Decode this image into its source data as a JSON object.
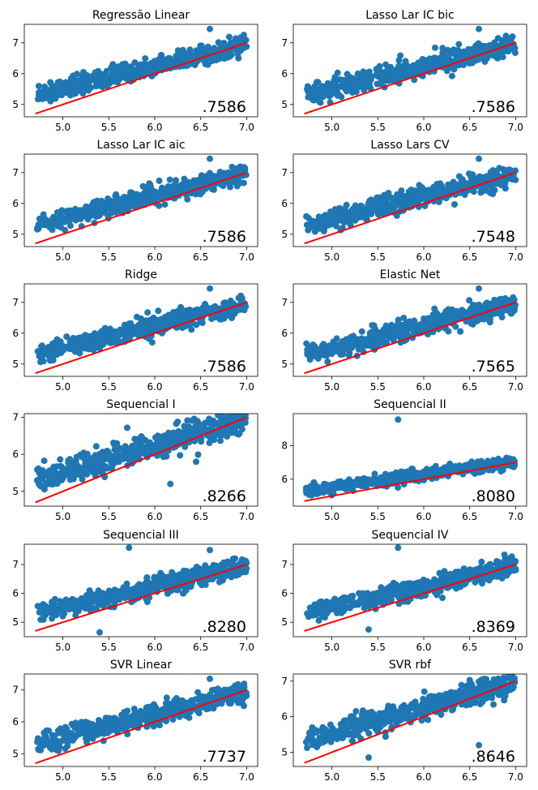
{
  "chart_data": [
    {
      "type": "scatter",
      "title": "Regressão Linear",
      "score": ".7586",
      "ylim": [
        4.6,
        7.6
      ],
      "xlim": [
        4.58,
        7.12
      ],
      "xticks": [
        "5.0",
        "5.5",
        "6.0",
        "6.5",
        "7.0"
      ],
      "yticks": [
        "5",
        "6",
        "7"
      ],
      "outliers": [
        [
          6.6,
          7.45
        ]
      ],
      "line": [
        [
          4.7,
          4.7
        ],
        [
          7.0,
          7.0
        ]
      ],
      "colors": {
        "points": "#1f77b4",
        "fit": "#ff0000"
      }
    },
    {
      "type": "scatter",
      "title": "Lasso Lar IC bic",
      "score": ".7586",
      "ylim": [
        4.6,
        7.6
      ],
      "xlim": [
        4.58,
        7.12
      ],
      "xticks": [
        "5.0",
        "5.5",
        "6.0",
        "6.5",
        "7.0"
      ],
      "yticks": [
        "5",
        "6",
        "7"
      ],
      "outliers": [
        [
          6.6,
          7.45
        ]
      ],
      "line": [
        [
          4.7,
          4.7
        ],
        [
          7.0,
          7.0
        ]
      ],
      "colors": {
        "points": "#1f77b4",
        "fit": "#ff0000"
      }
    },
    {
      "type": "scatter",
      "title": "Lasso Lar IC aic",
      "score": ".7586",
      "ylim": [
        4.6,
        7.6
      ],
      "xlim": [
        4.58,
        7.12
      ],
      "xticks": [
        "5.0",
        "5.5",
        "6.0",
        "6.5",
        "7.0"
      ],
      "yticks": [
        "5",
        "6",
        "7"
      ],
      "outliers": [
        [
          6.6,
          7.45
        ]
      ],
      "line": [
        [
          4.7,
          4.7
        ],
        [
          7.0,
          7.0
        ]
      ],
      "colors": {
        "points": "#1f77b4",
        "fit": "#ff0000"
      }
    },
    {
      "type": "scatter",
      "title": "Lasso Lars CV",
      "score": ".7548",
      "ylim": [
        4.6,
        7.6
      ],
      "xlim": [
        4.58,
        7.12
      ],
      "xticks": [
        "5.0",
        "5.5",
        "6.0",
        "6.5",
        "7.0"
      ],
      "yticks": [
        "5",
        "6",
        "7"
      ],
      "outliers": [
        [
          6.6,
          7.45
        ]
      ],
      "line": [
        [
          4.7,
          4.7
        ],
        [
          7.0,
          7.0
        ]
      ],
      "colors": {
        "points": "#1f77b4",
        "fit": "#ff0000"
      }
    },
    {
      "type": "scatter",
      "title": "Ridge",
      "score": ".7586",
      "ylim": [
        4.6,
        7.6
      ],
      "xlim": [
        4.58,
        7.12
      ],
      "xticks": [
        "5.0",
        "5.5",
        "6.0",
        "6.5",
        "7.0"
      ],
      "yticks": [
        "5",
        "6",
        "7"
      ],
      "outliers": [
        [
          6.6,
          7.45
        ]
      ],
      "line": [
        [
          4.7,
          4.7
        ],
        [
          7.0,
          7.0
        ]
      ],
      "colors": {
        "points": "#1f77b4",
        "fit": "#ff0000"
      }
    },
    {
      "type": "scatter",
      "title": "Elastic Net",
      "score": ".7565",
      "ylim": [
        4.6,
        7.6
      ],
      "xlim": [
        4.58,
        7.12
      ],
      "xticks": [
        "5.0",
        "5.5",
        "6.0",
        "6.5",
        "7.0"
      ],
      "yticks": [
        "5",
        "6",
        "7"
      ],
      "outliers": [
        [
          6.6,
          7.45
        ]
      ],
      "line": [
        [
          4.7,
          4.7
        ],
        [
          7.0,
          7.0
        ]
      ],
      "colors": {
        "points": "#1f77b4",
        "fit": "#ff0000"
      }
    },
    {
      "type": "scatter",
      "title": "Sequencial I",
      "score": ".8266",
      "ylim": [
        4.6,
        7.1
      ],
      "xlim": [
        4.58,
        7.12
      ],
      "xticks": [
        "5.0",
        "5.5",
        "6.0",
        "6.5",
        "7.0"
      ],
      "yticks": [
        "5",
        "6",
        "7"
      ],
      "outliers": [
        [
          5.7,
          6.72
        ],
        [
          6.25,
          6.88
        ],
        [
          6.45,
          5.8
        ],
        [
          6.17,
          5.2
        ]
      ],
      "line": [
        [
          4.7,
          4.7
        ],
        [
          7.0,
          7.0
        ]
      ],
      "colors": {
        "points": "#1f77b4",
        "fit": "#ff0000"
      }
    },
    {
      "type": "scatter",
      "title": "Sequencial II",
      "score": ".8080",
      "ylim": [
        4.4,
        9.9
      ],
      "xlim": [
        4.58,
        7.12
      ],
      "xticks": [
        "5.0",
        "5.5",
        "6.0",
        "6.5",
        "7.0"
      ],
      "yticks": [
        "6",
        "8"
      ],
      "outliers": [
        [
          5.72,
          9.55
        ]
      ],
      "line": [
        [
          4.7,
          4.7
        ],
        [
          7.0,
          7.0
        ]
      ],
      "colors": {
        "points": "#1f77b4",
        "fit": "#ff0000"
      }
    },
    {
      "type": "scatter",
      "title": "Sequencial III",
      "score": ".8280",
      "ylim": [
        4.5,
        7.7
      ],
      "xlim": [
        4.58,
        7.12
      ],
      "xticks": [
        "5.0",
        "5.5",
        "6.0",
        "6.5",
        "7.0"
      ],
      "yticks": [
        "5",
        "6",
        "7"
      ],
      "outliers": [
        [
          5.72,
          7.58
        ],
        [
          6.6,
          7.5
        ],
        [
          5.4,
          4.65
        ]
      ],
      "line": [
        [
          4.7,
          4.7
        ],
        [
          7.0,
          7.0
        ]
      ],
      "colors": {
        "points": "#1f77b4",
        "fit": "#ff0000"
      }
    },
    {
      "type": "scatter",
      "title": "Sequencial IV",
      "score": ".8369",
      "ylim": [
        4.5,
        7.7
      ],
      "xlim": [
        4.58,
        7.12
      ],
      "xticks": [
        "5.0",
        "5.5",
        "6.0",
        "6.5",
        "7.0"
      ],
      "yticks": [
        "5",
        "6",
        "7"
      ],
      "outliers": [
        [
          5.72,
          7.58
        ],
        [
          5.4,
          4.75
        ]
      ],
      "line": [
        [
          4.7,
          4.7
        ],
        [
          7.0,
          7.0
        ]
      ],
      "colors": {
        "points": "#1f77b4",
        "fit": "#ff0000"
      }
    },
    {
      "type": "scatter",
      "title": "SVR Linear",
      "score": ".7737",
      "ylim": [
        4.6,
        7.5
      ],
      "xlim": [
        4.58,
        7.12
      ],
      "xticks": [
        "5.0",
        "5.5",
        "6.0",
        "6.5",
        "7.0"
      ],
      "yticks": [
        "5",
        "6",
        "7"
      ],
      "outliers": [
        [
          6.6,
          7.35
        ],
        [
          6.97,
          6.5
        ]
      ],
      "line": [
        [
          4.7,
          4.7
        ],
        [
          7.0,
          7.0
        ]
      ],
      "colors": {
        "points": "#1f77b4",
        "fit": "#ff0000"
      }
    },
    {
      "type": "scatter",
      "title": "SVR rbf",
      "score": ".8646",
      "ylim": [
        4.6,
        7.2
      ],
      "xlim": [
        4.58,
        7.12
      ],
      "xticks": [
        "5.0",
        "5.5",
        "6.0",
        "6.5",
        "7.0"
      ],
      "yticks": [
        "5",
        "6",
        "7"
      ],
      "outliers": [
        [
          6.5,
          7.03
        ],
        [
          6.6,
          5.2
        ],
        [
          5.4,
          4.85
        ],
        [
          6.85,
          7.02
        ]
      ],
      "line": [
        [
          4.7,
          4.7
        ],
        [
          7.0,
          7.0
        ]
      ],
      "colors": {
        "points": "#1f77b4",
        "fit": "#ff0000"
      }
    }
  ]
}
